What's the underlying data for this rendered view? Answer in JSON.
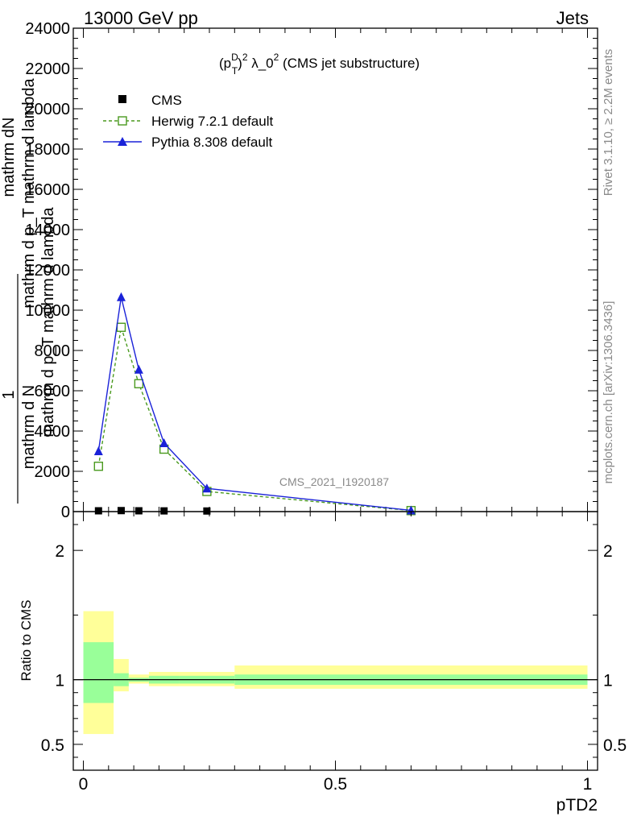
{
  "header": {
    "left_text": "13000 GeV pp",
    "right_text": "Jets"
  },
  "side_labels": {
    "rivet": "Rivet 3.1.10, ≥ 2.2M events",
    "mcplots": "mcplots.cern.ch [arXiv:1306.3436]"
  },
  "watermark": "CMS_2021_I1920187",
  "legend_title": "(p_T^D)^2 λ_0^2 (CMS jet substructure)",
  "legend_title_parts": {
    "open": "(p",
    "sup_d": "D",
    "sub_t": "T",
    "close": ")",
    "sup_2a": "2",
    "lambda": " λ_0",
    "sup_2b": "2",
    "rest": " (CMS jet substructure)"
  },
  "ylabel_lines": {
    "one": "1",
    "frac_top": "mathrm dN",
    "frac_bottom": "mathrm d p_T mathrm d lambda",
    "lead_top": "mathrm d N",
    "lead_bottom": "mathrm d p_T mathrm d lambda"
  },
  "colors": {
    "cms": "#000000",
    "herwig": "#4a9a1e",
    "pythia": "#1a22d8",
    "band_inner": "#99ff99",
    "band_outer": "#ffff99"
  },
  "chart_data": [
    {
      "type": "line",
      "xlim": [
        -0.02,
        1.02
      ],
      "ylim": [
        0,
        24000
      ],
      "yticks": [
        0,
        2000,
        4000,
        6000,
        8000,
        10000,
        12000,
        14000,
        16000,
        18000,
        20000,
        22000,
        24000
      ],
      "ytick_labels": [
        "0",
        "2000",
        "4000",
        "6000",
        "8000",
        "10000",
        "12000",
        "14000",
        "16000",
        "18000",
        "20000",
        "22000",
        "24000"
      ],
      "legend_position": "top-left",
      "series": [
        {
          "name": "CMS",
          "style": "markers",
          "marker": "filled-square",
          "x": [
            0.03,
            0.075,
            0.11,
            0.16,
            0.245,
            0.65
          ],
          "y": [
            40,
            50,
            40,
            35,
            30,
            10
          ]
        },
        {
          "name": "Herwig 7.2.1 default",
          "style": "dashed",
          "marker": "open-square",
          "x": [
            0.03,
            0.075,
            0.11,
            0.16,
            0.245,
            0.65
          ],
          "y": [
            2250,
            9150,
            6350,
            3100,
            1000,
            50
          ]
        },
        {
          "name": "Pythia 8.308 default",
          "style": "solid",
          "marker": "filled-triangle",
          "x": [
            0.03,
            0.075,
            0.11,
            0.16,
            0.245,
            0.65
          ],
          "y": [
            3000,
            10650,
            7050,
            3400,
            1150,
            60
          ]
        }
      ]
    },
    {
      "type": "area",
      "ylabel": "Ratio to CMS",
      "xlabel": "pTD2",
      "xlim": [
        -0.02,
        1.02
      ],
      "ylim": [
        0.3,
        2.3
      ],
      "yticks": [
        0.5,
        1,
        2
      ],
      "ytick_labels": [
        "0.5",
        "1",
        "2"
      ],
      "xticks": [
        0,
        0.5,
        1
      ],
      "xtick_labels": [
        "0",
        "0.5",
        "1"
      ],
      "reference_line": 1,
      "bins": [
        {
          "x0": 0.0,
          "x1": 0.06,
          "inner": [
            0.82,
            1.29
          ],
          "outer": [
            0.58,
            1.53
          ]
        },
        {
          "x0": 0.06,
          "x1": 0.09,
          "inner": [
            0.95,
            1.05
          ],
          "outer": [
            0.91,
            1.16
          ]
        },
        {
          "x0": 0.09,
          "x1": 0.13,
          "inner": [
            0.985,
            1.015
          ],
          "outer": [
            0.97,
            1.04
          ]
        },
        {
          "x0": 0.13,
          "x1": 0.19,
          "inner": [
            0.97,
            1.03
          ],
          "outer": [
            0.95,
            1.06
          ]
        },
        {
          "x0": 0.19,
          "x1": 0.3,
          "inner": [
            0.97,
            1.03
          ],
          "outer": [
            0.95,
            1.06
          ]
        },
        {
          "x0": 0.3,
          "x1": 1.0,
          "inner": [
            0.96,
            1.04
          ],
          "outer": [
            0.93,
            1.11
          ]
        }
      ]
    }
  ]
}
